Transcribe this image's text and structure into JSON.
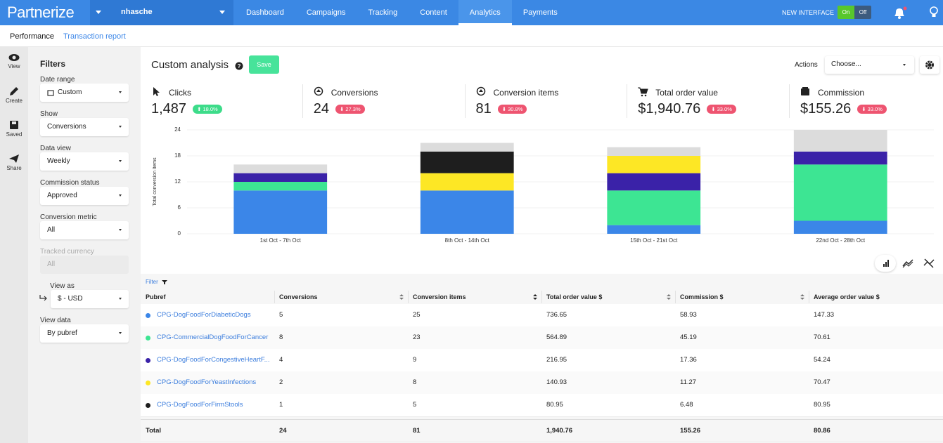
{
  "nav": {
    "logo": "Partnerize",
    "user": "nhasche",
    "items": [
      "Dashboard",
      "Campaigns",
      "Tracking",
      "Content",
      "Analytics",
      "Payments"
    ],
    "active": 4,
    "new_interface": "NEW INTERFACE",
    "on": "On",
    "off": "Off"
  },
  "subnav": [
    "Performance",
    "Transaction report"
  ],
  "rail": [
    "View",
    "Create",
    "Saved",
    "Share"
  ],
  "filters": {
    "title": "Filters",
    "fields": [
      {
        "label": "Date range",
        "value": "Custom"
      },
      {
        "label": "Show",
        "value": "Conversions"
      },
      {
        "label": "Data view",
        "value": "Weekly"
      },
      {
        "label": "Commission status",
        "value": "Approved"
      },
      {
        "label": "Conversion metric",
        "value": "All"
      },
      {
        "label": "Tracked currency",
        "value": "All",
        "disabled": true
      },
      {
        "label": "View as",
        "value": "$ - USD",
        "indent": true
      },
      {
        "label": "View data",
        "value": "By pubref"
      }
    ]
  },
  "header": {
    "title": "Custom analysis",
    "save": "Save",
    "actions": "Actions",
    "choose": "Choose..."
  },
  "kpis": [
    {
      "label": "Clicks",
      "value": "1,487",
      "change": "18.0%",
      "trend": "up"
    },
    {
      "label": "Conversions",
      "value": "24",
      "change": "27.3%",
      "trend": "down"
    },
    {
      "label": "Conversion items",
      "value": "81",
      "change": "30.8%",
      "trend": "down"
    },
    {
      "label": "Total order value",
      "value": "$1,940.76",
      "change": "33.0%",
      "trend": "down"
    },
    {
      "label": "Commission",
      "value": "$155.26",
      "change": "33.0%",
      "trend": "down"
    }
  ],
  "chart_data": {
    "type": "stacked_bar",
    "y_label": "Total conversion items",
    "categories": [
      "1st Oct - 7th Oct",
      "8th Oct - 14th Oct",
      "15th Oct - 21st Oct",
      "22nd Oct - 28th Oct"
    ],
    "series": [
      {
        "color": "#3b86e8",
        "values": [
          10,
          10,
          2,
          3
        ]
      },
      {
        "color": "#3de593",
        "values": [
          2,
          0,
          8,
          13
        ]
      },
      {
        "color": "#3a22a8",
        "values": [
          2,
          0,
          4,
          3
        ]
      },
      {
        "color": "#fde725",
        "values": [
          0,
          4,
          4,
          0
        ]
      },
      {
        "color": "#1e1e1e",
        "values": [
          0,
          5,
          0,
          0
        ]
      },
      {
        "color": "#dcdcdc",
        "values": [
          2,
          2,
          2,
          5
        ]
      }
    ],
    "ylim": [
      0,
      24
    ],
    "yticks": [
      0,
      6,
      12,
      18,
      24
    ],
    "grid": true
  },
  "table": {
    "filter": "Filter",
    "columns": [
      "Pubref",
      "Conversions",
      "Conversion items",
      "Total order value $",
      "Commission $",
      "Average order value $"
    ],
    "rows": [
      [
        "CPG-DogFoodForDiabeticDogs",
        "5",
        "25",
        "736.65",
        "58.93",
        "147.33"
      ],
      [
        "CPG-CommercialDogFoodForCancer",
        "8",
        "23",
        "564.89",
        "45.19",
        "70.61"
      ],
      [
        "CPG-DogFoodForCongestiveHeartF...",
        "4",
        "9",
        "216.95",
        "17.36",
        "54.24"
      ],
      [
        "CPG-DogFoodForYeastInfections",
        "2",
        "8",
        "140.93",
        "11.27",
        "70.47"
      ],
      [
        "CPG-DogFoodForFirmStools",
        "1",
        "5",
        "80.95",
        "6.48",
        "80.95"
      ]
    ],
    "total": [
      "Total",
      "24",
      "81",
      "1,940.76",
      "155.26",
      "80.86"
    ]
  }
}
